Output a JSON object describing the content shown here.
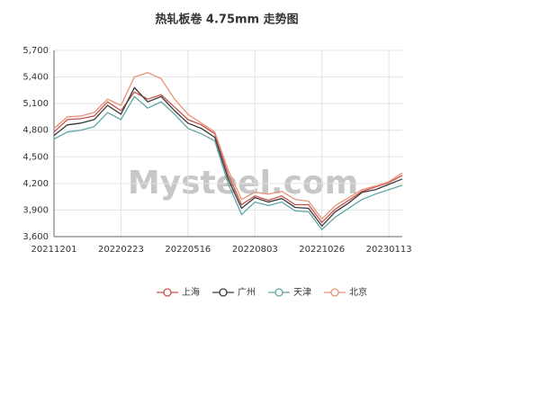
{
  "chart_data": {
    "type": "line",
    "title": "热轧板卷 4.75mm 走势图",
    "watermark": "Mysteel.com",
    "categories": [
      "20211201",
      null,
      null,
      null,
      null,
      "20220223",
      null,
      null,
      null,
      null,
      "20220516",
      null,
      null,
      null,
      null,
      "20220803",
      null,
      null,
      null,
      null,
      "20221026",
      null,
      null,
      null,
      null,
      "20230113",
      null
    ],
    "series": [
      {
        "name": "上海",
        "color": "#c9504c",
        "values": [
          4780,
          4920,
          4930,
          4960,
          5120,
          5020,
          5230,
          5150,
          5200,
          5060,
          4920,
          4860,
          4760,
          4300,
          3960,
          4060,
          4010,
          4060,
          3960,
          3960,
          3760,
          3910,
          4010,
          4110,
          4160,
          4210,
          4290
        ]
      },
      {
        "name": "广州",
        "color": "#3a3a3a",
        "values": [
          4740,
          4860,
          4880,
          4920,
          5080,
          4980,
          5280,
          5120,
          5180,
          5020,
          4880,
          4820,
          4720,
          4250,
          3920,
          4040,
          3990,
          4030,
          3930,
          3920,
          3720,
          3880,
          3980,
          4100,
          4130,
          4190,
          4250
        ]
      },
      {
        "name": "天津",
        "color": "#5fa6a4",
        "values": [
          4700,
          4780,
          4800,
          4840,
          5000,
          4920,
          5180,
          5050,
          5120,
          4980,
          4820,
          4760,
          4680,
          4200,
          3850,
          3990,
          3950,
          3990,
          3890,
          3880,
          3680,
          3820,
          3920,
          4020,
          4080,
          4130,
          4180
        ]
      },
      {
        "name": "北京",
        "color": "#e8937a",
        "values": [
          4820,
          4950,
          4960,
          5000,
          5150,
          5080,
          5400,
          5450,
          5380,
          5150,
          4980,
          4880,
          4780,
          4350,
          4020,
          4100,
          4080,
          4110,
          4020,
          4000,
          3800,
          3950,
          4040,
          4130,
          4170,
          4220,
          4320
        ]
      }
    ],
    "ylim": [
      3600,
      5700
    ],
    "yticks": [
      {
        "value": 3600,
        "label": "3,600"
      },
      {
        "value": 3900,
        "label": "3,900"
      },
      {
        "value": 4200,
        "label": "4,200"
      },
      {
        "value": 4500,
        "label": "4,500"
      },
      {
        "value": 4800,
        "label": "4,800"
      },
      {
        "value": 5100,
        "label": "5,100"
      },
      {
        "value": 5400,
        "label": "5,400"
      },
      {
        "value": 5700,
        "label": "5,700"
      }
    ],
    "grid": true
  }
}
